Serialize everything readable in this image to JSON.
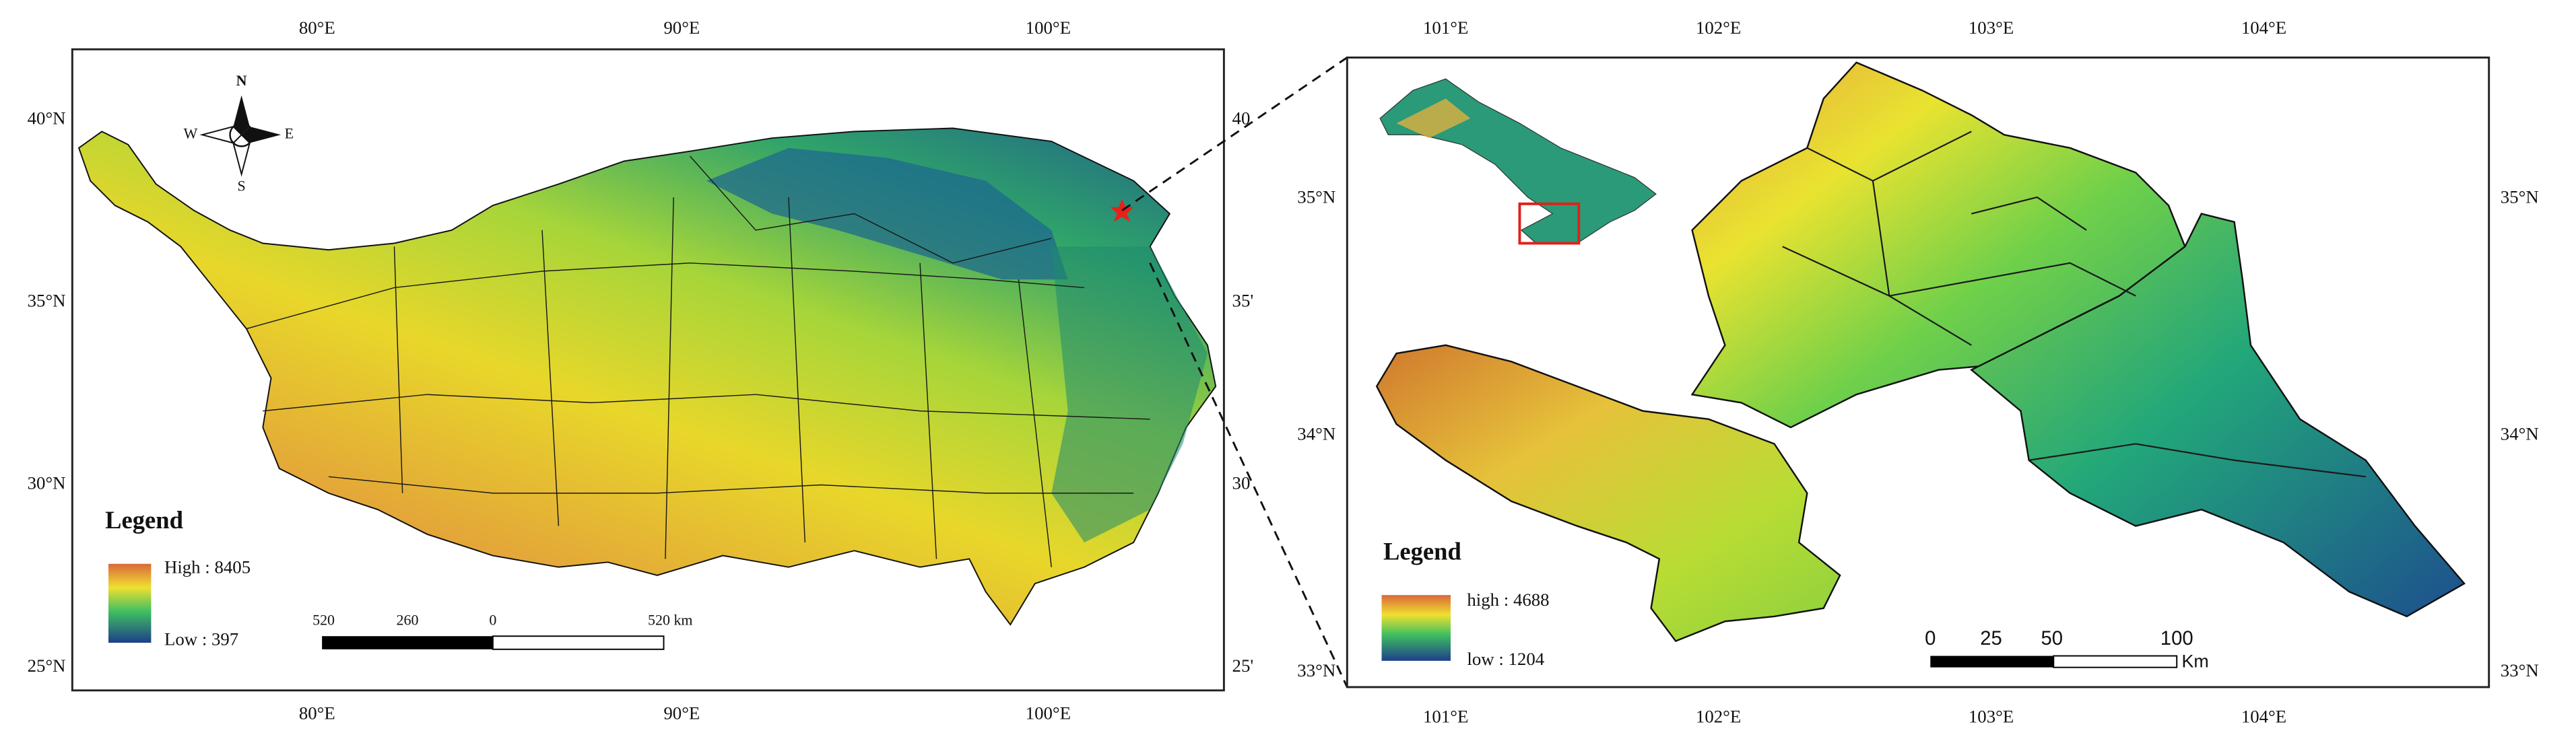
{
  "left_map": {
    "top_labels": [
      "80°E",
      "90°E",
      "100°E"
    ],
    "bottom_labels": [
      "80°E",
      "90°E",
      "100°E"
    ],
    "left_labels": [
      "40°N",
      "35°N",
      "30°N",
      "25°N"
    ],
    "right_labels": [
      "40",
      "35'",
      "30",
      "25'"
    ],
    "north_arrow": {
      "n": "N",
      "s": "S",
      "e": "E",
      "w": "W"
    },
    "legend": {
      "title": "Legend",
      "high": "High : 8405",
      "low": "Low : 397"
    },
    "scale_bar": {
      "labels": [
        "520",
        "260",
        "0",
        "520 km"
      ]
    }
  },
  "right_map": {
    "top_labels": [
      "101°E",
      "102°E",
      "103°E",
      "104°E"
    ],
    "bottom_labels": [
      "101°E",
      "102°E",
      "103°E",
      "104°E"
    ],
    "left_labels": [
      "35°N",
      "34°N",
      "33°N"
    ],
    "right_labels": [
      "35°N",
      "34°N",
      "33°N"
    ],
    "legend": {
      "title": "Legend",
      "high": "high : 4688",
      "low": "low : 1204"
    },
    "scale_bar": {
      "labels": [
        "0",
        "25",
        "50",
        "100",
        "Km"
      ]
    }
  }
}
